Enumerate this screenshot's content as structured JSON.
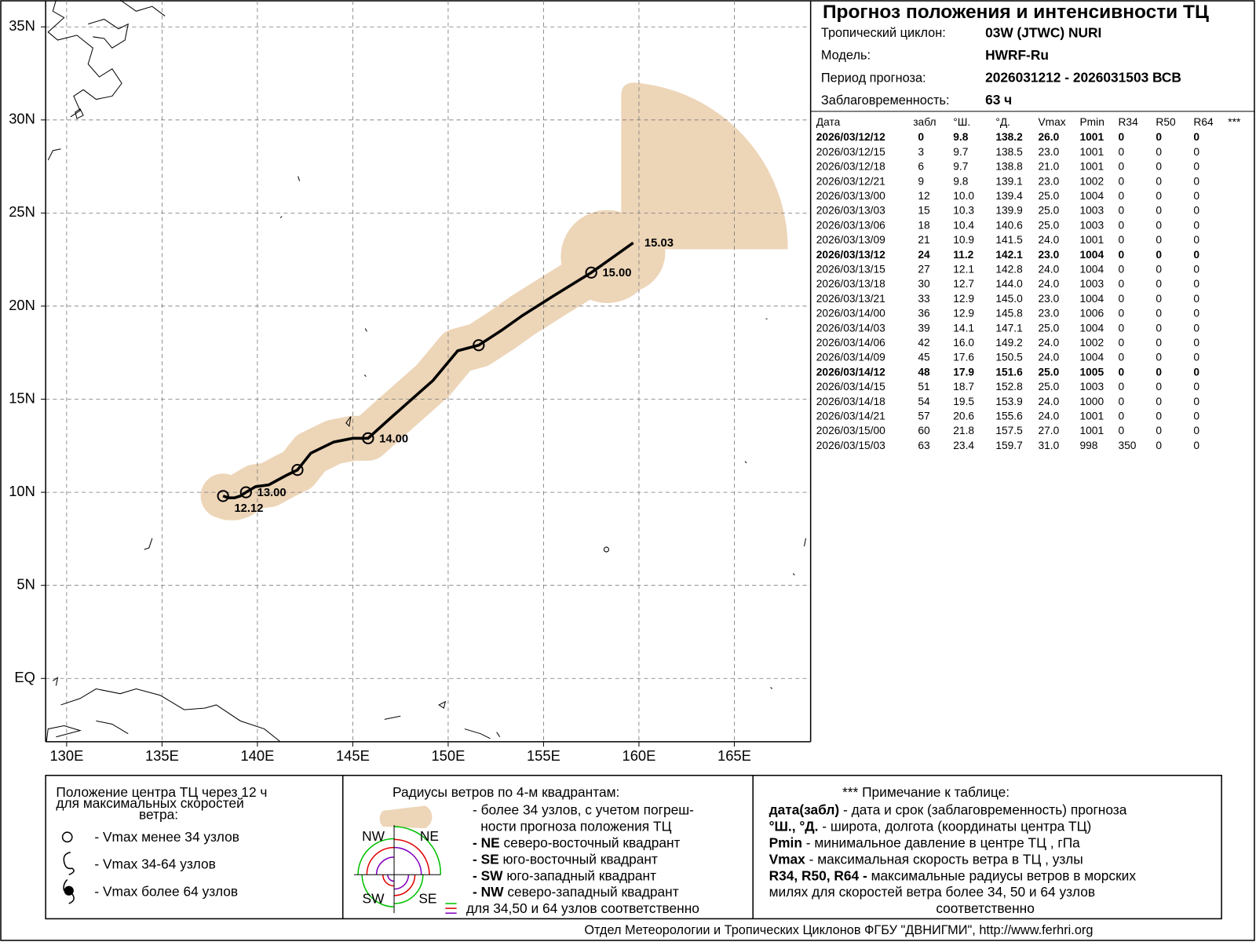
{
  "header": {
    "title": "Прогноз положения и интенсивности ТЦ",
    "info": [
      {
        "label": "Тропический циклон:",
        "value": "03W (JTWC)  NURI"
      },
      {
        "label": "Модель:",
        "value": "HWRF-Ru"
      },
      {
        "label": "Период прогноза:",
        "value": "2026031212 - 2026031503 ВСВ"
      },
      {
        "label": "Заблаговременность:",
        "value": "63 ч"
      }
    ]
  },
  "table": {
    "columns": [
      "Дата",
      "забл",
      "°Ш.",
      "°Д.",
      "Vmax",
      "Pmin",
      "R34",
      "R50",
      "R64",
      "***"
    ],
    "bold_rows": [
      0,
      8,
      16
    ],
    "rows": [
      [
        "2026/03/12/12",
        "0",
        "9.8",
        "138.2",
        "26.0",
        "1001",
        "0",
        "0",
        "0"
      ],
      [
        "2026/03/12/15",
        "3",
        "9.7",
        "138.5",
        "23.0",
        "1001",
        "0",
        "0",
        "0"
      ],
      [
        "2026/03/12/18",
        "6",
        "9.7",
        "138.8",
        "21.0",
        "1001",
        "0",
        "0",
        "0"
      ],
      [
        "2026/03/12/21",
        "9",
        "9.8",
        "139.1",
        "23.0",
        "1002",
        "0",
        "0",
        "0"
      ],
      [
        "2026/03/13/00",
        "12",
        "10.0",
        "139.4",
        "25.0",
        "1004",
        "0",
        "0",
        "0"
      ],
      [
        "2026/03/13/03",
        "15",
        "10.3",
        "139.9",
        "25.0",
        "1003",
        "0",
        "0",
        "0"
      ],
      [
        "2026/03/13/06",
        "18",
        "10.4",
        "140.6",
        "25.0",
        "1003",
        "0",
        "0",
        "0"
      ],
      [
        "2026/03/13/09",
        "21",
        "10.9",
        "141.5",
        "24.0",
        "1001",
        "0",
        "0",
        "0"
      ],
      [
        "2026/03/13/12",
        "24",
        "11.2",
        "142.1",
        "23.0",
        "1004",
        "0",
        "0",
        "0"
      ],
      [
        "2026/03/13/15",
        "27",
        "12.1",
        "142.8",
        "24.0",
        "1004",
        "0",
        "0",
        "0"
      ],
      [
        "2026/03/13/18",
        "30",
        "12.7",
        "144.0",
        "24.0",
        "1003",
        "0",
        "0",
        "0"
      ],
      [
        "2026/03/13/21",
        "33",
        "12.9",
        "145.0",
        "23.0",
        "1004",
        "0",
        "0",
        "0"
      ],
      [
        "2026/03/14/00",
        "36",
        "12.9",
        "145.8",
        "23.0",
        "1006",
        "0",
        "0",
        "0"
      ],
      [
        "2026/03/14/03",
        "39",
        "14.1",
        "147.1",
        "25.0",
        "1004",
        "0",
        "0",
        "0"
      ],
      [
        "2026/03/14/06",
        "42",
        "16.0",
        "149.2",
        "24.0",
        "1002",
        "0",
        "0",
        "0"
      ],
      [
        "2026/03/14/09",
        "45",
        "17.6",
        "150.5",
        "24.0",
        "1004",
        "0",
        "0",
        "0"
      ],
      [
        "2026/03/14/12",
        "48",
        "17.9",
        "151.6",
        "25.0",
        "1005",
        "0",
        "0",
        "0"
      ],
      [
        "2026/03/14/15",
        "51",
        "18.7",
        "152.8",
        "25.0",
        "1003",
        "0",
        "0",
        "0"
      ],
      [
        "2026/03/14/18",
        "54",
        "19.5",
        "153.9",
        "24.0",
        "1000",
        "0",
        "0",
        "0"
      ],
      [
        "2026/03/14/21",
        "57",
        "20.6",
        "155.6",
        "24.0",
        "1001",
        "0",
        "0",
        "0"
      ],
      [
        "2026/03/15/00",
        "60",
        "21.8",
        "157.5",
        "27.0",
        "1001",
        "0",
        "0",
        "0"
      ],
      [
        "2026/03/15/03",
        "63",
        "23.4",
        "159.7",
        "31.0",
        "998",
        "350",
        "0",
        "0"
      ]
    ]
  },
  "chart_data": {
    "type": "map",
    "xlim": [
      128.9,
      169
    ],
    "ylim": [
      -3.4,
      36.4
    ],
    "grid": true,
    "xticks": [
      {
        "value": 130,
        "label": "130E"
      },
      {
        "value": 135,
        "label": "135E"
      },
      {
        "value": 140,
        "label": "140E"
      },
      {
        "value": 145,
        "label": "145E"
      },
      {
        "value": 150,
        "label": "150E"
      },
      {
        "value": 155,
        "label": "155E"
      },
      {
        "value": 160,
        "label": "160E"
      },
      {
        "value": 165,
        "label": "165E"
      }
    ],
    "yticks": [
      {
        "value": 0,
        "label": "EQ"
      },
      {
        "value": 5,
        "label": "5N"
      },
      {
        "value": 10,
        "label": "10N"
      },
      {
        "value": 15,
        "label": "15N"
      },
      {
        "value": 20,
        "label": "20N"
      },
      {
        "value": 25,
        "label": "25N"
      },
      {
        "value": 30,
        "label": "30N"
      },
      {
        "value": 35,
        "label": "35N"
      }
    ],
    "track_color": "#000000",
    "cone_color": "#edd5b8",
    "label_color": "#1a3cf0",
    "x": [
      138.2,
      138.5,
      138.8,
      139.1,
      139.4,
      139.9,
      140.6,
      141.5,
      142.1,
      142.8,
      144.0,
      145.0,
      145.8,
      147.1,
      149.2,
      150.5,
      151.6,
      152.8,
      153.9,
      155.6,
      157.5,
      159.7
    ],
    "y": [
      9.8,
      9.7,
      9.7,
      9.8,
      10.0,
      10.3,
      10.4,
      10.9,
      11.2,
      12.1,
      12.7,
      12.9,
      12.9,
      14.1,
      16.0,
      17.6,
      17.9,
      18.7,
      19.5,
      20.6,
      21.8,
      23.4
    ],
    "markers": [
      "circle",
      null,
      null,
      null,
      "circle",
      null,
      null,
      null,
      "circle",
      null,
      null,
      null,
      "circle",
      null,
      null,
      null,
      "circle",
      null,
      null,
      null,
      "circle",
      null
    ],
    "point_labels": [
      "12.12",
      null,
      null,
      null,
      "13.00",
      null,
      null,
      null,
      null,
      null,
      null,
      null,
      "14.00",
      null,
      null,
      null,
      null,
      null,
      null,
      null,
      "15.00",
      "15.03"
    ]
  },
  "legend": {
    "center": {
      "title": [
        "Положение центра ТЦ через 12 ч",
        "для максимальных скоростей",
        "ветра:"
      ],
      "items": [
        "- Vmax  менее 34 узлов",
        "- Vmax  34-64 узлов",
        "- Vmax  более 64 узлов"
      ]
    },
    "radii": {
      "title": "Радиусы ветров по 4-м квадрантам:",
      "lines": [
        {
          "term": "",
          "text": "- более 34 узлов, с учетом погреш-"
        },
        {
          "term": "",
          "text": "ности прогноза положения ТЦ"
        },
        {
          "term": "- NE",
          "text": " северо-восточный квадрант"
        },
        {
          "term": "- SE",
          "text": " юго-восточный квадрант"
        },
        {
          "term": "- SW",
          "text": " юго-западный квадрант"
        },
        {
          "term": "- NW",
          "text": " северо-западный квадрант"
        },
        {
          "term": "",
          "text": "для 34,50 и 64 узлов соответственно"
        }
      ],
      "quadrants": [
        "NW",
        "NE",
        "SW",
        "SE"
      ]
    },
    "notes": {
      "title": "*** Примечание к таблице:",
      "lines": [
        {
          "term": "дата(забл)",
          "text": "  - дата и срок (заблаговременность) прогноза"
        },
        {
          "term": "°Ш., °Д.",
          "text": "  - широта, долгота   (координаты центра ТЦ)"
        },
        {
          "term": "Pmin",
          "text": "  - минимальное давление в центре ТЦ , гПа"
        },
        {
          "term": "Vmax",
          "text": "   -  максимальная скорость ветра в ТЦ , узлы"
        },
        {
          "term": "R34, R50, R64 -",
          "text": "  максимальные радиусы ветров в морских"
        },
        {
          "term": "",
          "text": "милях для скоростей ветра более 34, 50 и 64 узлов"
        },
        {
          "term": "",
          "text": "соответственно"
        }
      ]
    }
  },
  "footer": "Отдел Метеорологии и Тропических Циклонов ФГБУ \"ДВНИГМИ\",  http://www.ferhri.org"
}
